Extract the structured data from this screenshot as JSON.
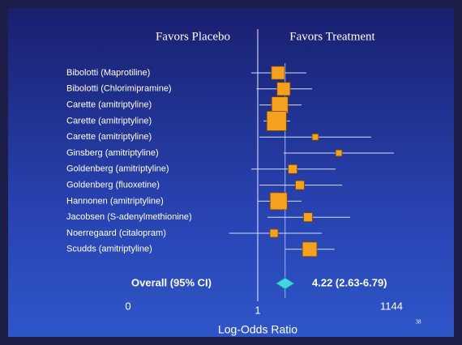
{
  "chart_data": {
    "type": "forest",
    "left_header": "Favors Placebo",
    "right_header": "Favors Treatment",
    "xlabel": "Log-Odds Ratio",
    "slide_number": "38",
    "categories": [
      "Bibolotti (Maprotiline)",
      "Bibolotti (Chlorimipramine)",
      "Carette (amitriptyline)",
      "Carette (amitriptyline)",
      "Carette (amitriptyline)",
      "Ginsberg (amitriptyline)",
      "Goldenberg (amitriptyline)",
      "Goldenberg (fluoxetine)",
      "Hannonen (amitriptyline)",
      "Jacobsen (S-adenylmethionine)",
      "Noerregaard (citalopram)",
      "Scudds (amitriptyline)"
    ],
    "values": [
      2.9,
      3.9,
      3.2,
      2.7,
      20.7,
      71.5,
      6.3,
      9.2,
      3.0,
      14.1,
      2.35,
      15.4
    ],
    "ci_low": [
      0.95,
      0.99,
      1.09,
      1.35,
      1.09,
      3.9,
      0.95,
      1.09,
      1.0,
      1.67,
      0.78,
      4.3
    ],
    "ci_high": [
      12.9,
      17.5,
      10,
      5.5,
      394,
      1300,
      60,
      85,
      10,
      130,
      29,
      57
    ],
    "weights": [
      26,
      26,
      40,
      58,
      6,
      6,
      12,
      12,
      44,
      12,
      10,
      32
    ],
    "color": "#f5a01e",
    "overall": {
      "label": "Overall (95% CI)",
      "value": 4.22,
      "ci_low": 2.63,
      "ci_high": 6.79,
      "value_label": "4.22 (2.63-6.79)",
      "color": "#3fd6e4"
    },
    "xlim": [
      0,
      1144
    ],
    "xticks": [
      0,
      1,
      1144
    ]
  }
}
